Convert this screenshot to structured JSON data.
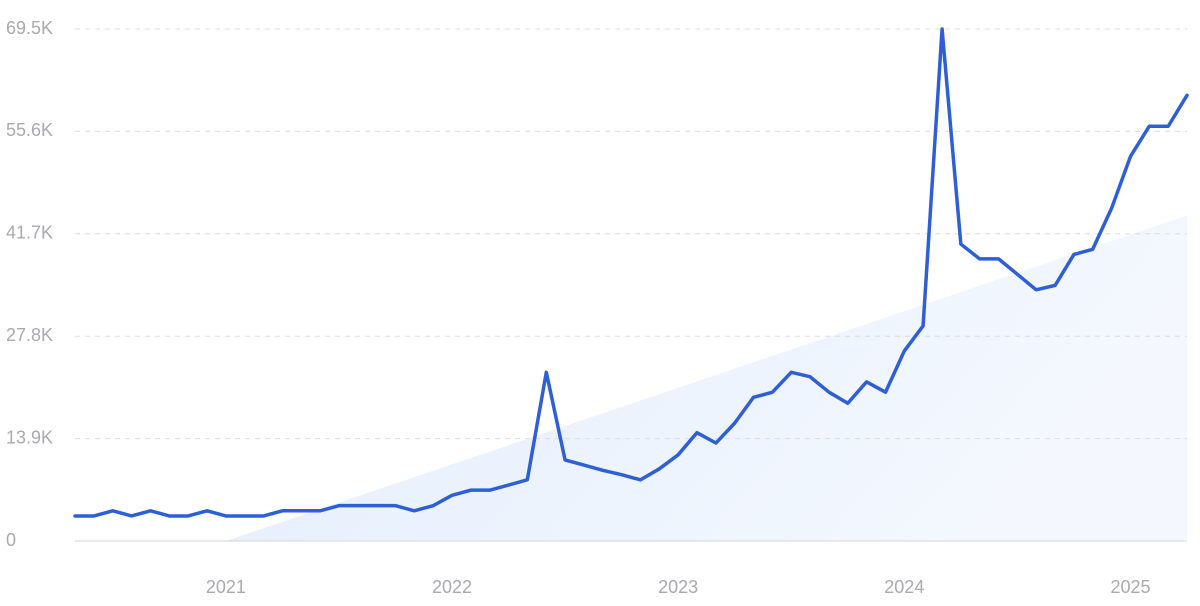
{
  "chart_data": {
    "type": "line",
    "x": [
      2020.333,
      2020.417,
      2020.5,
      2020.583,
      2020.667,
      2020.75,
      2020.833,
      2020.917,
      2021,
      2021.083,
      2021.167,
      2021.25,
      2021.333,
      2021.417,
      2021.5,
      2021.583,
      2021.667,
      2021.75,
      2021.833,
      2021.917,
      2022,
      2022.083,
      2022.167,
      2022.25,
      2022.333,
      2022.417,
      2022.5,
      2022.583,
      2022.667,
      2022.75,
      2022.833,
      2022.917,
      2023,
      2023.083,
      2023.167,
      2023.25,
      2023.333,
      2023.417,
      2023.5,
      2023.583,
      2023.667,
      2023.75,
      2023.833,
      2023.917,
      2024,
      2024.083,
      2024.167,
      2024.25,
      2024.333,
      2024.417,
      2024.5,
      2024.583,
      2024.667,
      2024.75,
      2024.833,
      2024.917,
      2025,
      2025.083,
      2025.167,
      2025.25
    ],
    "series": [
      {
        "color": "#2f5fd4",
        "values": [
          3400,
          3400,
          4100,
          3400,
          4100,
          3400,
          3400,
          4100,
          3400,
          3400,
          3400,
          4100,
          4100,
          4100,
          4800,
          4800,
          4800,
          4800,
          4100,
          4800,
          6200,
          6900,
          6900,
          7600,
          8300,
          22900,
          11000,
          10300,
          9600,
          9000,
          8300,
          9800,
          11700,
          14700,
          13300,
          16000,
          19500,
          20200,
          22900,
          22300,
          20200,
          18700,
          21600,
          20200,
          25800,
          29200,
          69500,
          40300,
          38300,
          38300,
          36200,
          34100,
          34700,
          38900,
          39600,
          45200,
          52200,
          56300,
          56300,
          60500
        ]
      }
    ],
    "trend": {
      "x": [
        2021,
        2025.25
      ],
      "values": [
        0,
        44200
      ],
      "color": "#dce8fb"
    },
    "xlim": [
      2020.333,
      2025.25
    ],
    "xticks": [
      2021,
      2022,
      2023,
      2024,
      2025
    ],
    "ylim": [
      0,
      69500
    ],
    "yticks": [
      0,
      {
        "value": 13900,
        "label": "13.9K"
      },
      {
        "value": 27800,
        "label": "27.8K"
      },
      {
        "value": 41700,
        "label": "41.7K"
      },
      {
        "value": 55600,
        "label": "55.6K"
      },
      {
        "value": 69500,
        "label": "69.5K"
      }
    ],
    "grid": true
  }
}
